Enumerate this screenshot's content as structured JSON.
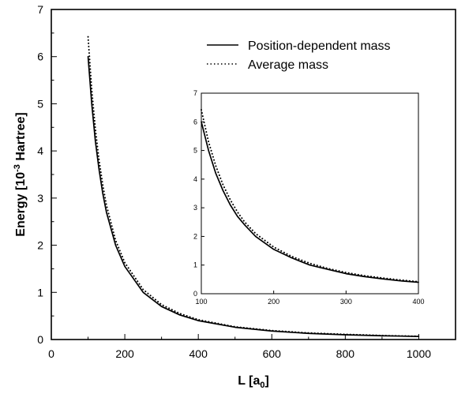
{
  "chart_data": [
    {
      "type": "line",
      "xlabel": "L [a",
      "xlabel_sub": "0",
      "xlabel_close": "]",
      "ylabel": "Energy [10",
      "ylabel_sup": "-3",
      "ylabel_rest": " Hartree]",
      "xlim": [
        0,
        1100
      ],
      "ylim": [
        0,
        7
      ],
      "x_ticks": [
        0,
        200,
        400,
        600,
        800,
        1000
      ],
      "x_tick_labels": [
        "0",
        "200",
        "400",
        "600",
        "800",
        "1000"
      ],
      "y_ticks": [
        0,
        1,
        2,
        3,
        4,
        5,
        6,
        7
      ],
      "y_tick_labels": [
        "0",
        "1",
        "2",
        "3",
        "4",
        "5",
        "6",
        "7"
      ],
      "legend_position": "top-right",
      "series": [
        {
          "name": "Position-dependent mass",
          "style": "solid",
          "x": [
            100,
            110,
            120,
            130,
            140,
            150,
            175,
            200,
            250,
            300,
            350,
            400,
            500,
            600,
            700,
            800,
            900,
            1000
          ],
          "y": [
            6.0,
            5.0,
            4.2,
            3.6,
            3.1,
            2.7,
            2.0,
            1.55,
            1.0,
            0.7,
            0.52,
            0.4,
            0.26,
            0.18,
            0.13,
            0.1,
            0.08,
            0.065
          ]
        },
        {
          "name": "Average mass",
          "style": "dotted",
          "x": [
            100,
            110,
            120,
            130,
            140,
            150,
            175,
            200,
            250,
            300,
            350,
            400,
            500,
            600,
            700,
            800,
            900,
            1000
          ],
          "y": [
            6.42,
            5.3,
            4.46,
            3.8,
            3.28,
            2.85,
            2.1,
            1.63,
            1.06,
            0.74,
            0.55,
            0.42,
            0.27,
            0.19,
            0.14,
            0.11,
            0.085,
            0.069
          ]
        }
      ]
    },
    {
      "type": "line",
      "xlim": [
        100,
        400
      ],
      "ylim": [
        0,
        7
      ],
      "x_ticks": [
        100,
        200,
        300,
        400
      ],
      "x_tick_labels": [
        "100",
        "200",
        "300",
        "400"
      ],
      "y_ticks": [
        0,
        1,
        2,
        3,
        4,
        5,
        6,
        7
      ],
      "y_tick_labels": [
        "0",
        "1",
        "2",
        "3",
        "4",
        "5",
        "6",
        "7"
      ],
      "series": [
        {
          "style": "solid",
          "x": [
            100,
            110,
            120,
            130,
            140,
            150,
            160,
            175,
            200,
            225,
            250,
            275,
            300,
            325,
            350,
            375,
            400
          ],
          "y": [
            6.0,
            5.0,
            4.2,
            3.6,
            3.1,
            2.7,
            2.4,
            2.0,
            1.55,
            1.25,
            1.0,
            0.85,
            0.7,
            0.6,
            0.52,
            0.45,
            0.4
          ]
        },
        {
          "style": "dotted",
          "x": [
            100,
            110,
            120,
            130,
            140,
            150,
            160,
            175,
            200,
            225,
            250,
            275,
            300,
            325,
            350,
            375,
            400
          ],
          "y": [
            6.42,
            5.3,
            4.46,
            3.8,
            3.28,
            2.85,
            2.5,
            2.1,
            1.63,
            1.3,
            1.06,
            0.88,
            0.74,
            0.63,
            0.55,
            0.48,
            0.42
          ]
        }
      ]
    }
  ]
}
